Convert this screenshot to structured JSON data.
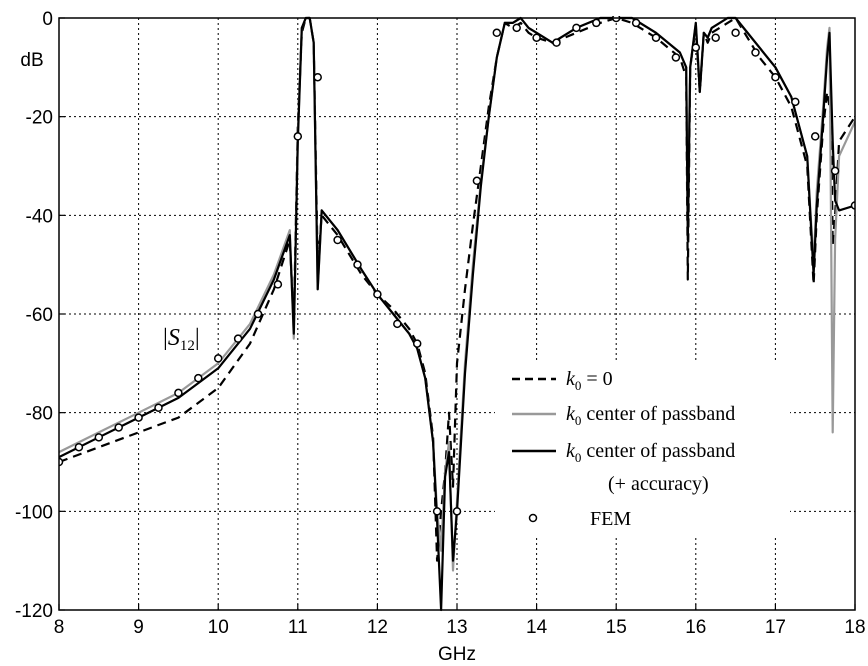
{
  "chart_data": {
    "type": "line",
    "title": "",
    "xlabel": "GHz",
    "ylabel": "dB",
    "xlim": [
      8,
      18
    ],
    "ylim": [
      -120,
      0
    ],
    "xticks": [
      "8",
      "9",
      "10",
      "11",
      "12",
      "13",
      "14",
      "15",
      "16",
      "17",
      "18"
    ],
    "yticks": [
      "0",
      "-20",
      "-40",
      "-60",
      "-80",
      "-100",
      "-120"
    ],
    "grid": true,
    "legend_position": "lower-right",
    "annotation": {
      "text": "|S12|",
      "main": "S",
      "sub": "12"
    },
    "colors": {
      "k0_zero": "#000000",
      "k0_center": "#999999",
      "k0_accuracy": "#000000",
      "fem": "#000000"
    },
    "legend": {
      "k0_zero": {
        "sym": "k",
        "sub": "0",
        "text": " = 0"
      },
      "k0_center": {
        "sym": "k",
        "sub": "0",
        "text": " center of passband"
      },
      "k0_accuracy": {
        "sym": "k",
        "sub": "0",
        "text": " center of passband",
        "line2": "(+ accuracy)"
      },
      "fem": {
        "text": "FEM"
      }
    },
    "series": [
      {
        "id": "k0_zero",
        "style": "dashed",
        "x": [
          8,
          8.5,
          9,
          9.5,
          10,
          10.4,
          10.7,
          10.9,
          10.95,
          11.0,
          11.05,
          11.1,
          11.15,
          11.2,
          11.25,
          11.3,
          11.5,
          11.8,
          12.0,
          12.2,
          12.4,
          12.5,
          12.6,
          12.7,
          12.75,
          12.8,
          12.85,
          12.9,
          12.95,
          13.0,
          13.1,
          13.2,
          13.3,
          13.4,
          13.5,
          13.6,
          13.7,
          13.8,
          13.9,
          14.0,
          14.2,
          14.5,
          14.8,
          15.0,
          15.2,
          15.5,
          15.8,
          15.88,
          15.9,
          15.93,
          16.0,
          16.05,
          16.1,
          16.15,
          16.2,
          16.4,
          16.5,
          16.8,
          17.0,
          17.2,
          17.4,
          17.48,
          17.52,
          17.6,
          17.65,
          17.7,
          17.72,
          17.75,
          17.8,
          18.0
        ],
        "y": [
          -90,
          -87,
          -84,
          -81,
          -75,
          -66,
          -55,
          -45,
          -62,
          -22,
          -3,
          0,
          0,
          -5,
          -50,
          -40,
          -44,
          -52,
          -56,
          -59,
          -63,
          -66,
          -72,
          -85,
          -110,
          -100,
          -92,
          -80,
          -95,
          -70,
          -55,
          -42,
          -30,
          -18,
          -8,
          -1,
          -2,
          -1,
          -3,
          -4,
          -5,
          -3,
          -1,
          0,
          -1,
          -4,
          -8,
          -12,
          -53,
          -10,
          -2,
          -15,
          -3,
          -5,
          -3,
          -1,
          0,
          -8,
          -12,
          -18,
          -30,
          -54,
          -40,
          -22,
          -15,
          -20,
          -46,
          -40,
          -25,
          -20
        ]
      },
      {
        "id": "k0_center",
        "style": "solid",
        "x": [
          8,
          8.5,
          9,
          9.5,
          10,
          10.4,
          10.7,
          10.9,
          10.95,
          11.0,
          11.05,
          11.1,
          11.15,
          11.2,
          11.25,
          11.3,
          11.5,
          11.8,
          12.0,
          12.2,
          12.4,
          12.5,
          12.6,
          12.7,
          12.75,
          12.8,
          12.85,
          12.9,
          12.95,
          13.0,
          13.1,
          13.2,
          13.3,
          13.4,
          13.5,
          13.6,
          13.7,
          13.8,
          13.9,
          14.0,
          14.2,
          14.5,
          14.8,
          15.0,
          15.2,
          15.5,
          15.8,
          15.88,
          15.9,
          15.93,
          16.0,
          16.05,
          16.1,
          16.15,
          16.2,
          16.4,
          16.5,
          16.8,
          17.0,
          17.2,
          17.4,
          17.48,
          17.52,
          17.6,
          17.65,
          17.68,
          17.72,
          17.75,
          17.8,
          18.0
        ],
        "y": [
          -88,
          -84,
          -80,
          -76,
          -70,
          -62,
          -52,
          -43,
          -65,
          -24,
          -2,
          0,
          0,
          -5,
          -55,
          -39,
          -43,
          -51,
          -56,
          -60,
          -64,
          -67,
          -73,
          -86,
          -100,
          -108,
          -92,
          -86,
          -112,
          -98,
          -70,
          -50,
          -33,
          -20,
          -8,
          -1,
          -1,
          0,
          -2,
          -3,
          -5,
          -2,
          0,
          0,
          0,
          -3,
          -7,
          -10,
          -40,
          -10,
          -1,
          -14,
          -3,
          -4,
          -2,
          0,
          0,
          -6,
          -10,
          -16,
          -28,
          -50,
          -35,
          -18,
          -6,
          -2,
          -84,
          -45,
          -28,
          -21
        ]
      },
      {
        "id": "k0_accuracy",
        "style": "solid",
        "x": [
          8,
          8.5,
          9,
          9.5,
          10,
          10.4,
          10.7,
          10.9,
          10.95,
          11.0,
          11.05,
          11.1,
          11.15,
          11.2,
          11.25,
          11.3,
          11.5,
          11.8,
          12.0,
          12.2,
          12.4,
          12.5,
          12.6,
          12.7,
          12.75,
          12.8,
          12.85,
          12.9,
          12.95,
          13.0,
          13.1,
          13.2,
          13.3,
          13.4,
          13.5,
          13.6,
          13.7,
          13.8,
          13.9,
          14.0,
          14.2,
          14.5,
          14.8,
          15.0,
          15.2,
          15.5,
          15.8,
          15.88,
          15.9,
          15.93,
          16.0,
          16.05,
          16.1,
          16.15,
          16.2,
          16.4,
          16.5,
          16.8,
          17.0,
          17.2,
          17.4,
          17.48,
          17.52,
          17.6,
          17.65,
          17.68,
          17.72,
          17.75,
          17.8,
          18.0
        ],
        "y": [
          -89,
          -85,
          -81,
          -77,
          -71,
          -63,
          -53,
          -44,
          -64,
          -25,
          -2,
          0,
          0,
          -5,
          -55,
          -39,
          -43,
          -51,
          -56,
          -60,
          -64,
          -67,
          -73,
          -86,
          -102,
          -120,
          -93,
          -88,
          -110,
          -100,
          -72,
          -52,
          -34,
          -20,
          -8,
          -1,
          -1,
          0,
          -2,
          -3,
          -5,
          -2,
          0,
          0,
          0,
          -3,
          -7,
          -10,
          -45,
          -10,
          -1,
          -15,
          -3,
          -4,
          -2,
          0,
          0,
          -6,
          -10,
          -16,
          -28,
          -52,
          -38,
          -20,
          -8,
          -3,
          -25,
          -37,
          -39,
          -38
        ]
      },
      {
        "id": "fem",
        "style": "markers",
        "x": [
          8,
          8.25,
          8.5,
          8.75,
          9,
          9.25,
          9.5,
          9.75,
          10,
          10.25,
          10.5,
          10.75,
          11.0,
          11.25,
          11.5,
          11.75,
          12.0,
          12.25,
          12.5,
          12.75,
          13.0,
          13.25,
          13.5,
          13.75,
          14.0,
          14.25,
          14.5,
          14.75,
          15.0,
          15.25,
          15.5,
          15.75,
          16.0,
          16.25,
          16.5,
          16.75,
          17.0,
          17.25,
          17.5,
          17.75,
          18.0
        ],
        "y": [
          -90,
          -87,
          -85,
          -83,
          -81,
          -79,
          -76,
          -73,
          -69,
          -65,
          -60,
          -54,
          -24,
          -12,
          -45,
          -50,
          -56,
          -62,
          -66,
          -100,
          -100,
          -33,
          -3,
          -2,
          -4,
          -5,
          -2,
          -1,
          0,
          -1,
          -4,
          -8,
          -6,
          -4,
          -3,
          -7,
          -12,
          -17,
          -24,
          -31,
          -38
        ]
      }
    ]
  }
}
